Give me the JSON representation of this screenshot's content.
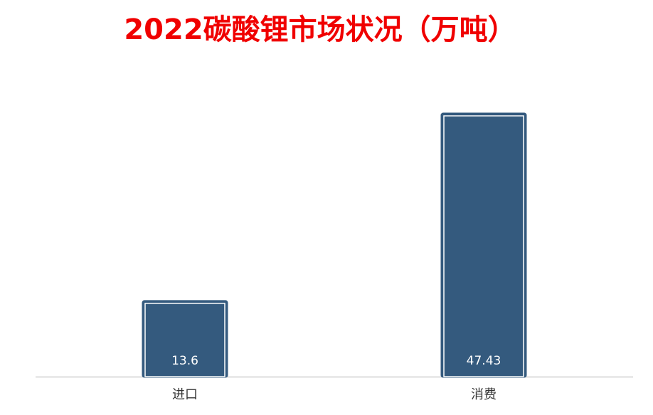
{
  "chart_data": {
    "type": "bar",
    "title": "2022碳酸锂市场状况（万吨）",
    "categories": [
      "进口",
      "消费"
    ],
    "values": [
      13.6,
      47.43
    ],
    "color": "#345a7e",
    "ylim": [
      0,
      50
    ],
    "grid": false
  }
}
